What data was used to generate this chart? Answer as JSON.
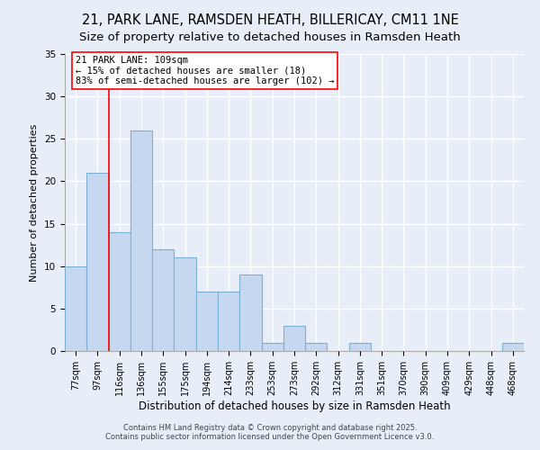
{
  "title1": "21, PARK LANE, RAMSDEN HEATH, BILLERICAY, CM11 1NE",
  "title2": "Size of property relative to detached houses in Ramsden Heath",
  "xlabel": "Distribution of detached houses by size in Ramsden Heath",
  "ylabel": "Number of detached properties",
  "categories": [
    "77sqm",
    "97sqm",
    "116sqm",
    "136sqm",
    "155sqm",
    "175sqm",
    "194sqm",
    "214sqm",
    "233sqm",
    "253sqm",
    "273sqm",
    "292sqm",
    "312sqm",
    "331sqm",
    "351sqm",
    "370sqm",
    "390sqm",
    "409sqm",
    "429sqm",
    "448sqm",
    "468sqm"
  ],
  "values": [
    10,
    21,
    14,
    26,
    12,
    11,
    7,
    7,
    9,
    1,
    3,
    1,
    0,
    1,
    0,
    0,
    0,
    0,
    0,
    0,
    1
  ],
  "bar_color": "#c5d8f0",
  "bar_edge_color": "#7bafd4",
  "background_color": "#e8eef8",
  "grid_color": "#ffffff",
  "red_line_x": 1.5,
  "annotation_title": "21 PARK LANE: 109sqm",
  "annotation_line1": "← 15% of detached houses are smaller (18)",
  "annotation_line2": "83% of semi-detached houses are larger (102) →",
  "footer1": "Contains HM Land Registry data © Crown copyright and database right 2025.",
  "footer2": "Contains public sector information licensed under the Open Government Licence v3.0.",
  "ylim": [
    0,
    35
  ],
  "yticks": [
    0,
    5,
    10,
    15,
    20,
    25,
    30,
    35
  ],
  "title1_fontsize": 10.5,
  "title2_fontsize": 9.5,
  "xlabel_fontsize": 8.5,
  "ylabel_fontsize": 8,
  "tick_fontsize": 7,
  "footer_fontsize": 6,
  "annot_fontsize": 7.5
}
